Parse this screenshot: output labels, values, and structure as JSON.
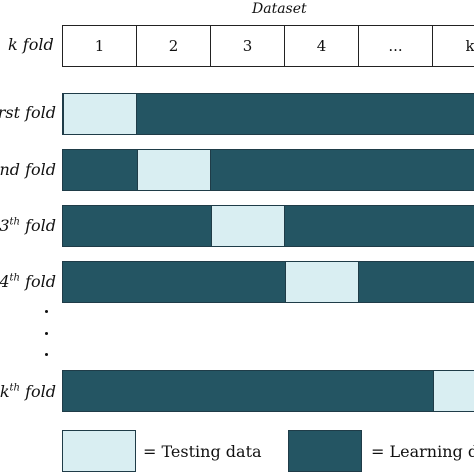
{
  "title": "Dataset",
  "k_label": "k fold",
  "dataset_cells": [
    "1",
    "2",
    "3",
    "4",
    "...",
    "k"
  ],
  "folds": [
    {
      "label": "rst fold",
      "sup": "",
      "test_index": 0
    },
    {
      "label": "nd fold",
      "sup": "",
      "test_index": 1
    },
    {
      "label": "3",
      "sup": "th",
      "suffix": " fold",
      "test_index": 2
    },
    {
      "label": "4",
      "sup": "th",
      "suffix": " fold",
      "test_index": 3
    },
    {
      "label": "k",
      "sup": "th",
      "suffix": " fold",
      "test_index": 5
    }
  ],
  "legend": {
    "testing": "= Testing data",
    "learning": "= Learning da"
  },
  "colors": {
    "testing": "#d9eef2",
    "learning": "#245563",
    "border": "#1f3c48"
  }
}
